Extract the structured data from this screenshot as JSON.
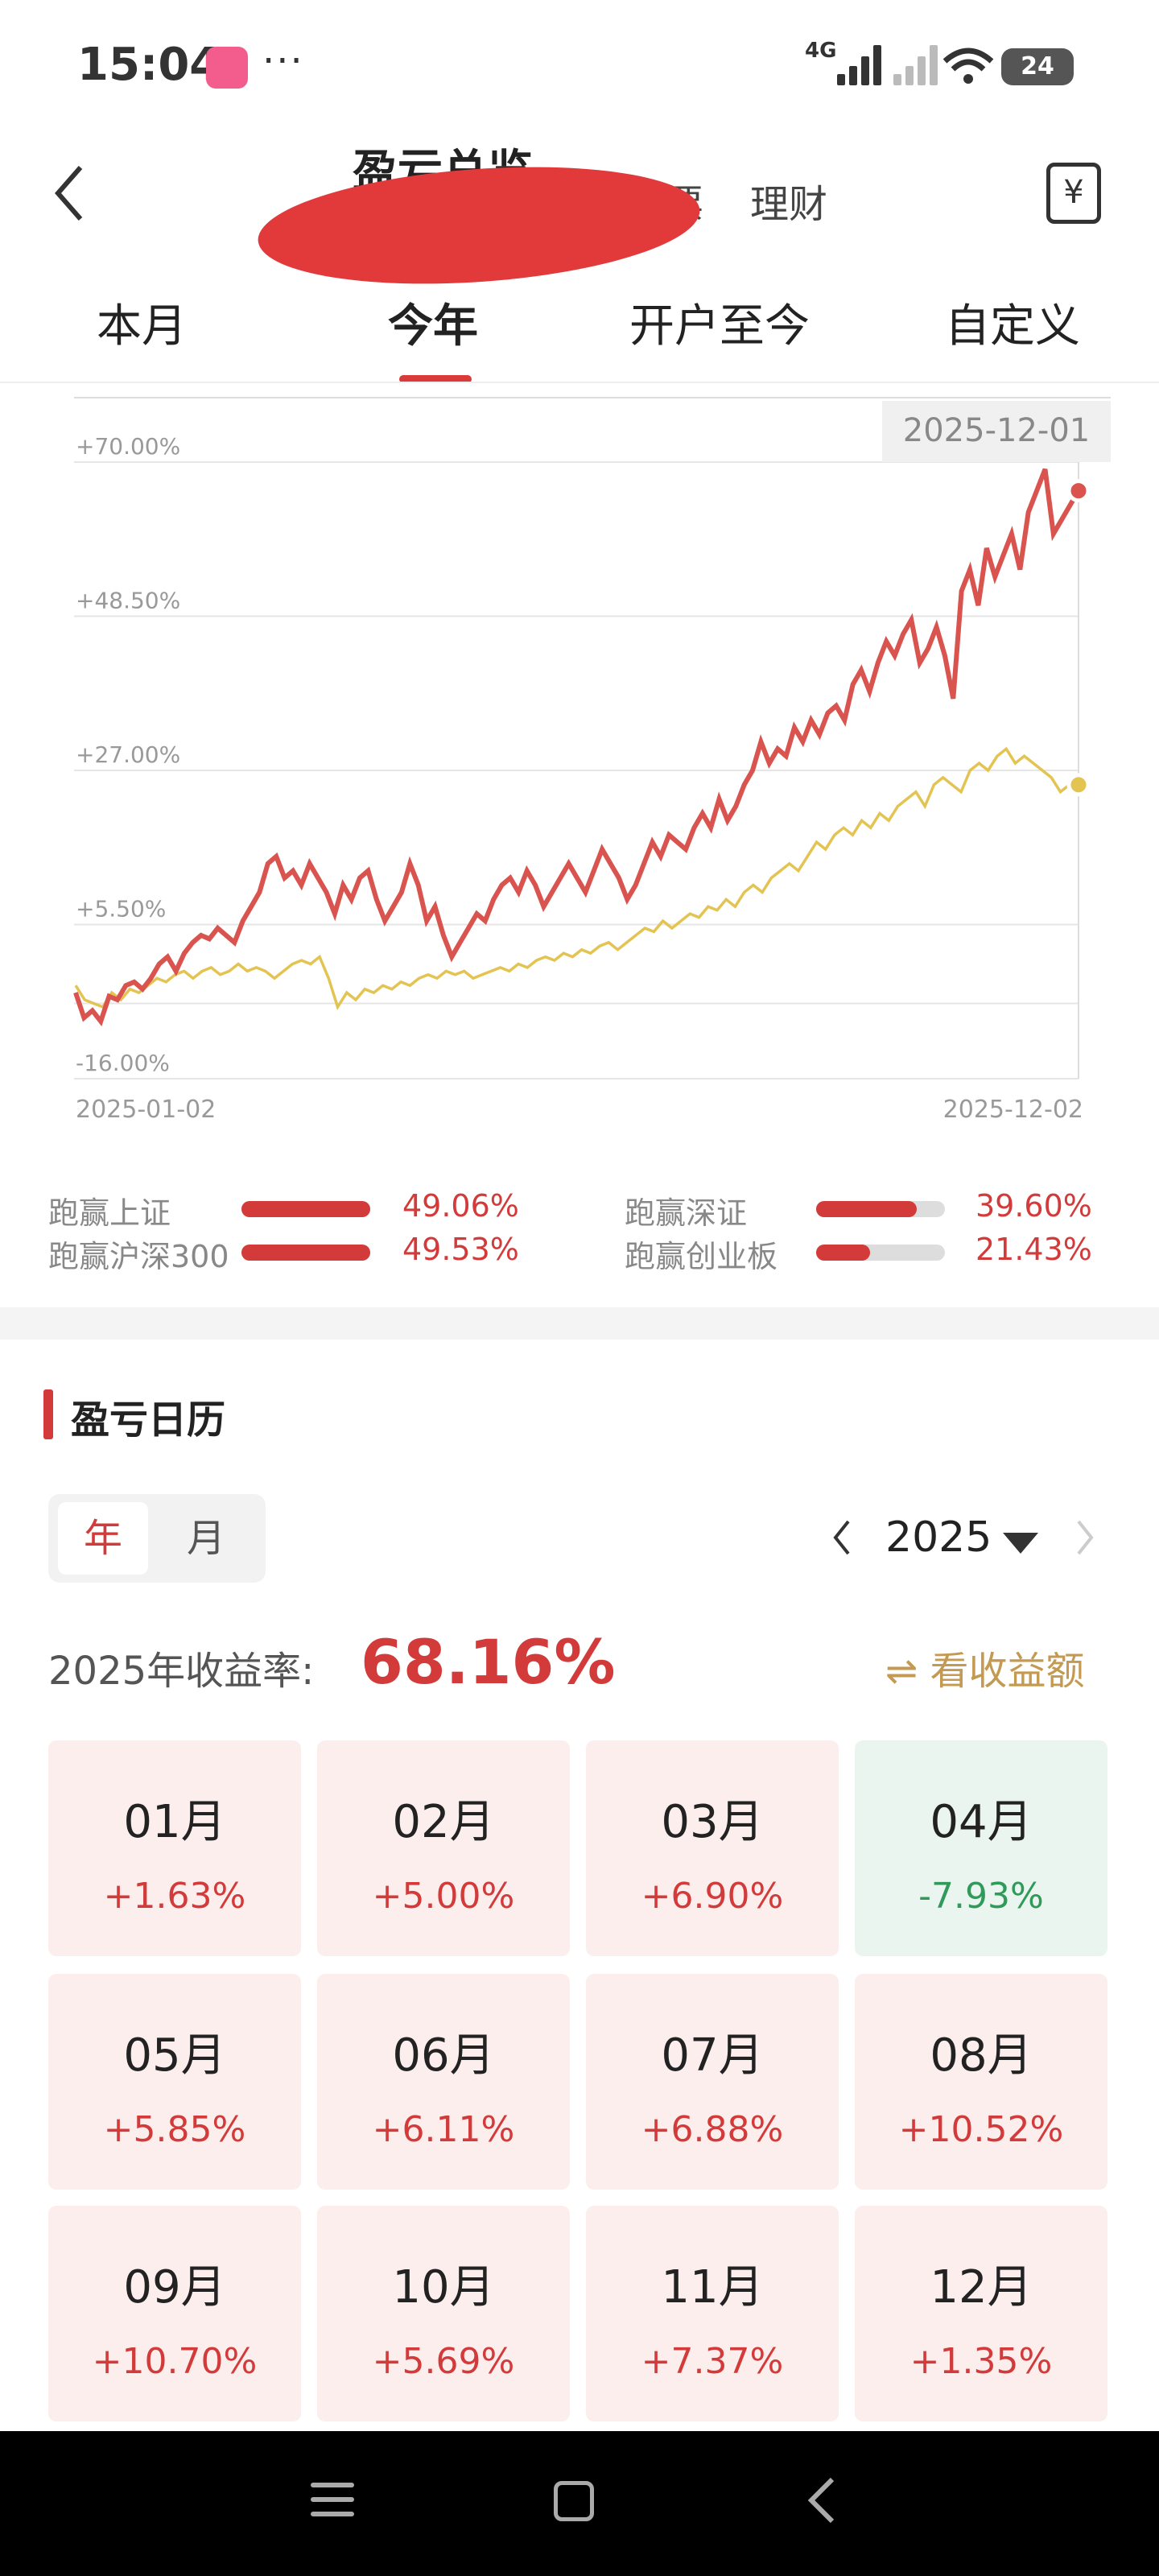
{
  "status_bar": {
    "time": "15:04",
    "more": "···",
    "network": "4G",
    "battery": "24"
  },
  "header": {
    "title": "盈亏总览",
    "tab_stock": "票",
    "tab_finance": "理财",
    "back_icon": "chevron-left-icon",
    "bill_icon": "yen-bill-icon"
  },
  "period_tabs": [
    {
      "label": "本月",
      "active": false
    },
    {
      "label": "今年",
      "active": true
    },
    {
      "label": "开户至今",
      "active": false
    },
    {
      "label": "自定义",
      "active": false
    }
  ],
  "chart_data": {
    "type": "line",
    "y_ticks": [
      "+70.00%",
      "+48.50%",
      "+27.00%",
      "+5.50%",
      "-16.00%"
    ],
    "ylim": [
      -16.0,
      70.0
    ],
    "x_start": "2025-01-02",
    "x_end": "2025-12-02",
    "highlight_date": "2025-12-01",
    "colors": {
      "portfolio": "#d9534f",
      "benchmark": "#e3c452"
    },
    "series": [
      {
        "key": "portfolio",
        "values": [
          -4,
          -7.5,
          -6.5,
          -8,
          -4.5,
          -5,
          -3,
          -2.5,
          -3.5,
          -2,
          0,
          1,
          -1,
          1.5,
          3,
          4,
          3.5,
          5,
          4,
          3,
          6,
          8,
          10,
          14,
          15,
          12,
          13,
          11,
          14,
          12,
          10,
          7,
          11,
          9,
          12,
          13,
          9,
          6,
          8,
          10,
          14,
          11,
          6,
          8,
          4,
          1,
          3,
          5,
          7,
          6,
          9,
          11,
          12,
          10,
          13,
          11,
          8,
          10,
          12,
          14,
          12,
          10,
          13,
          16,
          14,
          12,
          9,
          11,
          14,
          17,
          15,
          18,
          17,
          16,
          19,
          21,
          19,
          23,
          20,
          22,
          25,
          27,
          31,
          28,
          30,
          29,
          33,
          31,
          34,
          32,
          35,
          36,
          34,
          39,
          41,
          38,
          42,
          45,
          43,
          46,
          48,
          42,
          44,
          47,
          43,
          37,
          52,
          55,
          50,
          58,
          54,
          57,
          60,
          55,
          63,
          66,
          69,
          60,
          62,
          64,
          66
        ],
        "last_value": 66
      },
      {
        "key": "benchmark",
        "values": [
          -3,
          -5,
          -5.5,
          -6,
          -4,
          -5,
          -3.5,
          -4,
          -3,
          -2,
          -2.5,
          -1.5,
          -1,
          -2,
          -1,
          -0.5,
          -1.5,
          -1,
          0,
          -1,
          -0.5,
          -1,
          -2,
          -1,
          0,
          0.5,
          0,
          1,
          -2,
          -6,
          -4,
          -5,
          -3.5,
          -4,
          -3,
          -3.5,
          -2.5,
          -3,
          -2,
          -1.5,
          -2,
          -1,
          -1.5,
          -1,
          -2,
          -1.5,
          -1,
          -0.5,
          -1,
          0,
          -0.5,
          0.5,
          1,
          0.5,
          1.5,
          1,
          2,
          1.5,
          2.5,
          3,
          2,
          3,
          4,
          5,
          4.5,
          6,
          5,
          6,
          7,
          6.5,
          8,
          7.5,
          9,
          8,
          10,
          11,
          10,
          12,
          13,
          14,
          13,
          15,
          17,
          16,
          18,
          19,
          18,
          20,
          19,
          21,
          20,
          22,
          23,
          24,
          22,
          25,
          26,
          25,
          24,
          27,
          28,
          27,
          29,
          30,
          28,
          29,
          28,
          27,
          26,
          24,
          25,
          25
        ],
        "last_value": 25
      }
    ]
  },
  "comparisons": [
    {
      "label": "跑赢上证",
      "value": "49.06%",
      "fill": 1.0
    },
    {
      "label": "跑赢深证",
      "value": "39.60%",
      "fill": 0.78
    },
    {
      "label": "跑赢沪深300",
      "value": "49.53%",
      "fill": 1.0
    },
    {
      "label": "跑赢创业板",
      "value": "21.43%",
      "fill": 0.42
    }
  ],
  "calendar": {
    "title": "盈亏日历",
    "seg_year": "年",
    "seg_month": "月",
    "year": "2025",
    "return_label": "2025年收益率:",
    "return_value": "68.16%",
    "toggle_label": "⇌ 看收益额",
    "months": [
      {
        "name": "01月",
        "value": "+1.63%",
        "negative": false
      },
      {
        "name": "02月",
        "value": "+5.00%",
        "negative": false
      },
      {
        "name": "03月",
        "value": "+6.90%",
        "negative": false
      },
      {
        "name": "04月",
        "value": "-7.93%",
        "negative": true
      },
      {
        "name": "05月",
        "value": "+5.85%",
        "negative": false
      },
      {
        "name": "06月",
        "value": "+6.11%",
        "negative": false
      },
      {
        "name": "07月",
        "value": "+6.88%",
        "negative": false
      },
      {
        "name": "08月",
        "value": "+10.52%",
        "negative": false
      },
      {
        "name": "09月",
        "value": "+10.70%",
        "negative": false
      },
      {
        "name": "10月",
        "value": "+5.69%",
        "negative": false
      },
      {
        "name": "11月",
        "value": "+7.37%",
        "negative": false
      },
      {
        "name": "12月",
        "value": "+1.35%",
        "negative": false
      }
    ]
  }
}
